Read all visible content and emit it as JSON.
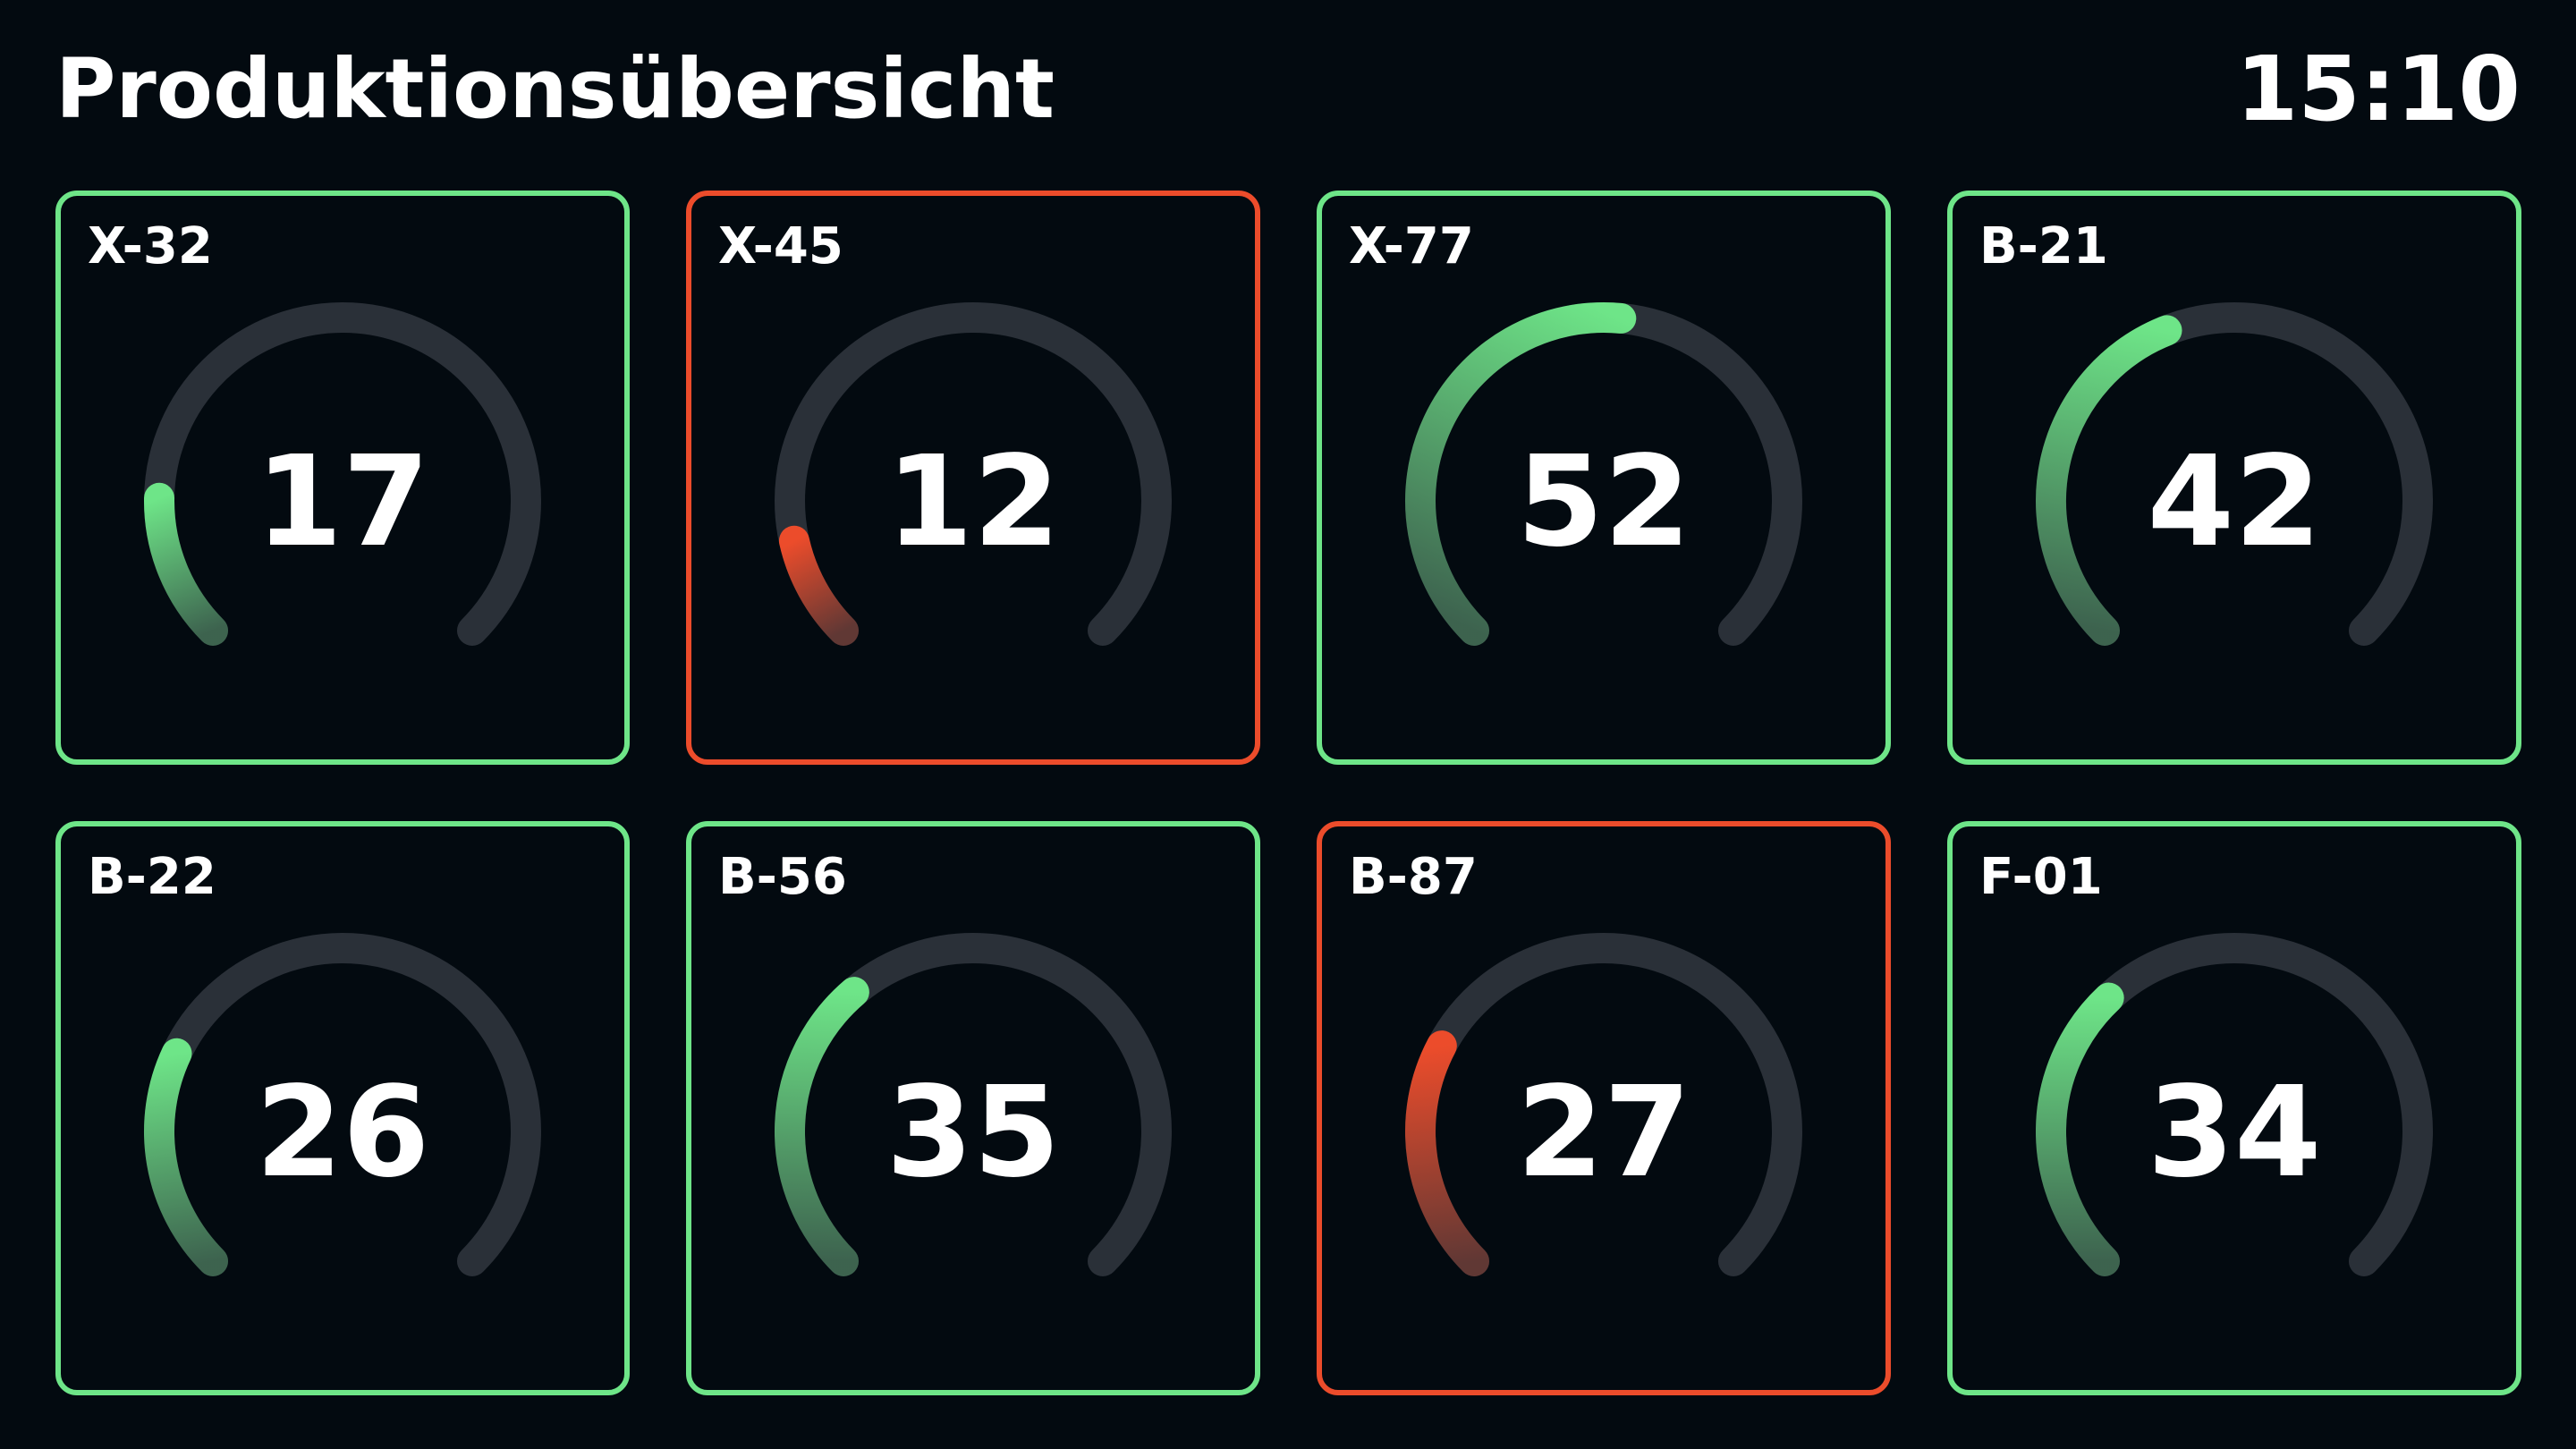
{
  "header": {
    "title": "Produktionsübersicht",
    "time": "15:10"
  },
  "gauge_max": 100,
  "colors": {
    "background": "#030a10",
    "track": "#2a3038",
    "ok": "#6ee588",
    "alarm": "#ec4c2b"
  },
  "tiles": [
    {
      "label": "X-32",
      "value": "17",
      "status": "ok"
    },
    {
      "label": "X-45",
      "value": "12",
      "status": "alarm"
    },
    {
      "label": "X-77",
      "value": "52",
      "status": "ok"
    },
    {
      "label": "B-21",
      "value": "42",
      "status": "ok"
    },
    {
      "label": "B-22",
      "value": "26",
      "status": "ok"
    },
    {
      "label": "B-56",
      "value": "35",
      "status": "ok"
    },
    {
      "label": "B-87",
      "value": "27",
      "status": "alarm"
    },
    {
      "label": "F-01",
      "value": "34",
      "status": "ok"
    }
  ]
}
